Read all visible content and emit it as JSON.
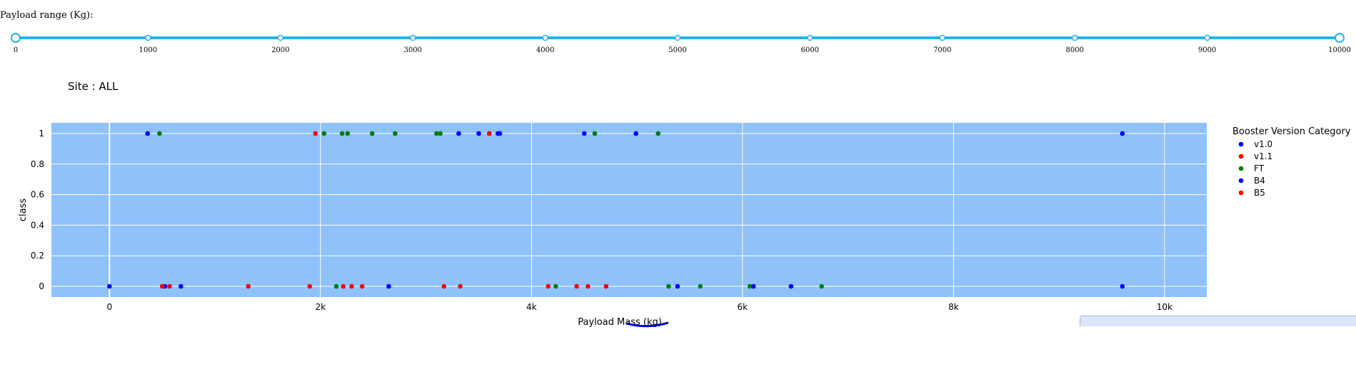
{
  "slider": {
    "label": "Payload range (Kg):",
    "min": 0,
    "max": 10000,
    "selected_min": 0,
    "selected_max": 10000,
    "marks": [
      "0",
      "1000",
      "2000",
      "3000",
      "4000",
      "5000",
      "6000",
      "7000",
      "8000",
      "9000",
      "10000"
    ],
    "color": "#1fb4e8"
  },
  "site": {
    "label": "Site : ALL"
  },
  "chart_data": {
    "type": "scatter",
    "title": "",
    "xlabel": "Payload Mass (kg)",
    "ylabel": "class",
    "xlim": [
      -550,
      10400
    ],
    "ylim": [
      -0.07,
      1.07
    ],
    "x_ticks": [
      0,
      2000,
      4000,
      6000,
      8000,
      10000
    ],
    "x_tick_labels": [
      "0",
      "2k",
      "4k",
      "6k",
      "8k",
      "10k"
    ],
    "y_ticks": [
      0,
      0.2,
      0.4,
      0.6,
      0.8,
      1
    ],
    "y_tick_labels": [
      "0",
      "0.2",
      "0.4",
      "0.6",
      "0.8",
      "1"
    ],
    "plot_bg": "#8fc1fb",
    "grid": true,
    "legend": {
      "title": "Booster Version Category",
      "position": "right"
    },
    "series": [
      {
        "name": "v1.0",
        "color": "#0000ff",
        "x": [
          0,
          525,
          677
        ],
        "y": [
          0,
          0,
          0
        ]
      },
      {
        "name": "v1.1",
        "color": "#ff0000",
        "x": [
          500,
          570,
          1316,
          1898,
          2216,
          2296,
          2395,
          3170,
          3325,
          4159,
          4428,
          4535,
          4707
        ],
        "y": [
          0,
          0,
          0,
          0,
          0,
          0,
          0,
          0,
          0,
          0,
          0,
          0,
          0
        ]
      },
      {
        "name": "FT",
        "color": "#008000",
        "x": [
          475,
          2034,
          2205,
          2257,
          2490,
          2708,
          3100,
          3136,
          3600,
          4600,
          5200,
          2150,
          4230,
          5300,
          5600,
          6070,
          6750
        ],
        "y": [
          1,
          1,
          1,
          1,
          1,
          1,
          1,
          1,
          1,
          1,
          1,
          0,
          0,
          0,
          0,
          0,
          0
        ]
      },
      {
        "name": "B4",
        "color": "#0000ff",
        "x": [
          362,
          3310,
          3500,
          3681,
          3700,
          4500,
          4990,
          9600,
          2647,
          5384,
          6104,
          6460,
          9600
        ],
        "y": [
          1,
          1,
          1,
          1,
          1,
          1,
          1,
          1,
          0,
          0,
          0,
          0,
          0
        ]
      },
      {
        "name": "B5",
        "color": "#ff0000",
        "x": [
          1952,
          3600
        ],
        "y": [
          1,
          1
        ]
      }
    ]
  }
}
